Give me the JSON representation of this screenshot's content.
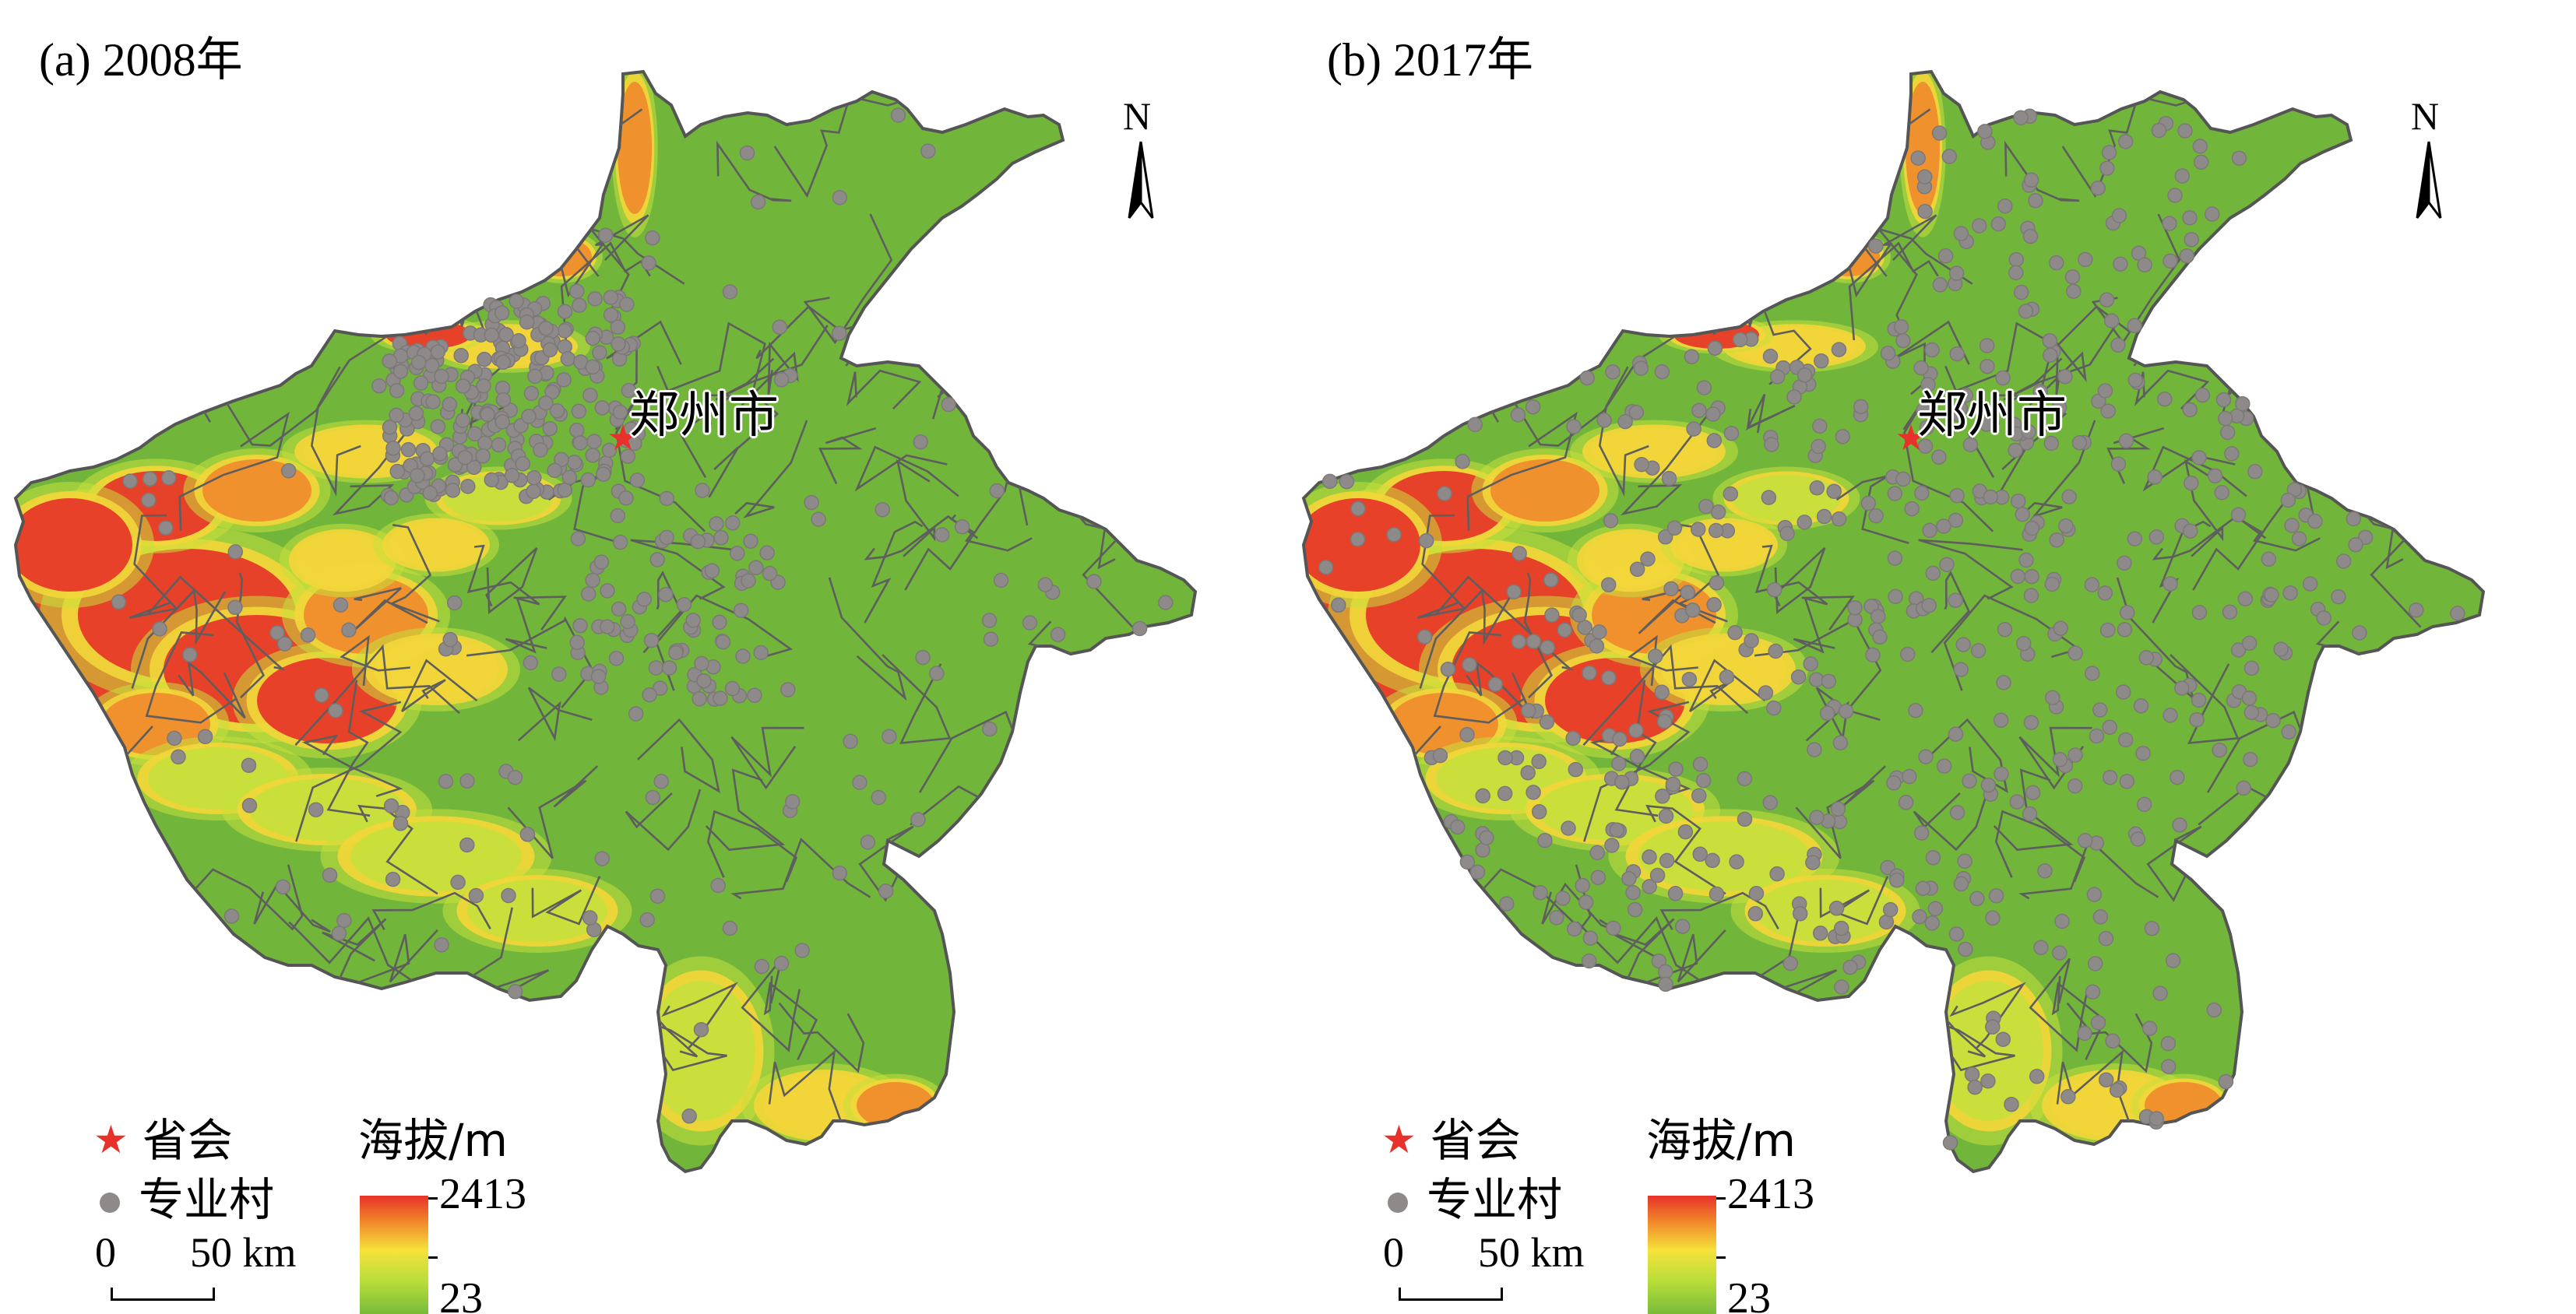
{
  "panels": [
    {
      "label": "(a) 2008年",
      "capital_label": "郑州市",
      "north_label": "N",
      "legend": {
        "capital": "省会",
        "village": "专业村",
        "elevation_title": "海拔/m",
        "elevation_max": "2413",
        "elevation_min": "23",
        "scale_zero": "0",
        "scale_fifty": "50 km"
      },
      "village_density": "clustered-north"
    },
    {
      "label": "(b) 2017年",
      "capital_label": "郑州市",
      "north_label": "N",
      "legend": {
        "capital": "省会",
        "village": "专业村",
        "elevation_title": "海拔/m",
        "elevation_max": "2413",
        "elevation_min": "23",
        "scale_zero": "0",
        "scale_fifty": "50 km"
      },
      "village_density": "dispersed"
    }
  ],
  "colors": {
    "lowland": "#71b63a",
    "hill": "#c6e03c",
    "upland": "#f3d63a",
    "mountain": "#ef8a2c",
    "peak": "#e53228",
    "boundary": "#5e5e5e",
    "village": "#8f8a8a",
    "capital": "#e8312a"
  },
  "icons": {
    "capital": "star-icon",
    "village": "dot-icon",
    "north": "north-arrow-icon"
  }
}
